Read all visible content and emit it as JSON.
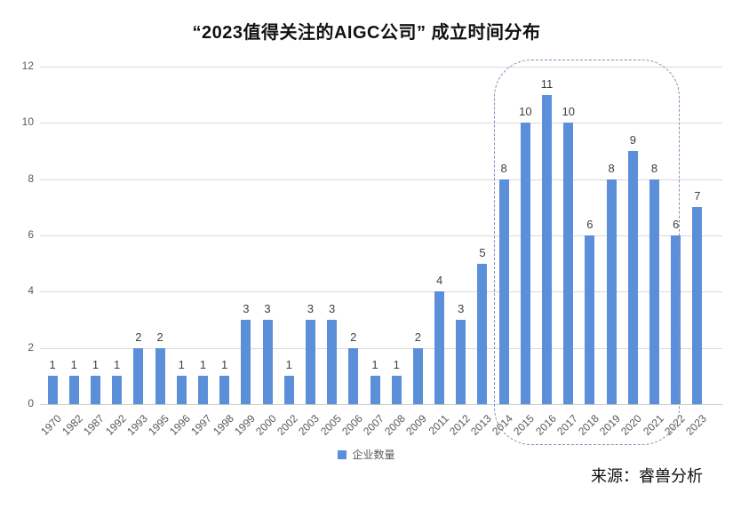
{
  "title": "“2023值得关注的AIGC公司” 成立时间分布",
  "chart_data": {
    "type": "bar",
    "title": "“2023值得关注的AIGC公司” 成立时间分布",
    "categories": [
      "1970",
      "1982",
      "1987",
      "1992",
      "1993",
      "1995",
      "1996",
      "1997",
      "1998",
      "1999",
      "2000",
      "2002",
      "2003",
      "2005",
      "2006",
      "2007",
      "2008",
      "2009",
      "2011",
      "2012",
      "2013",
      "2014",
      "2015",
      "2016",
      "2017",
      "2018",
      "2019",
      "2020",
      "2021",
      "2022",
      "2023"
    ],
    "values": [
      1,
      1,
      1,
      1,
      2,
      2,
      1,
      1,
      1,
      3,
      3,
      1,
      3,
      3,
      2,
      1,
      1,
      2,
      4,
      3,
      5,
      8,
      10,
      11,
      10,
      6,
      8,
      9,
      8,
      6,
      7
    ],
    "series_name": "企业数量",
    "xlabel": "",
    "ylabel": "",
    "ylim": [
      0,
      12
    ],
    "yticks": [
      0,
      2,
      4,
      6,
      8,
      10,
      12
    ],
    "grid": true,
    "data_labels": true,
    "legend_position": "bottom",
    "bar_color": "#5b8fd9",
    "grid_color": "#d9d9d9",
    "highlight_range": {
      "from": "2014",
      "to": "2022",
      "style": "dashed rounded rectangle",
      "border_color": "#7a93b8"
    }
  },
  "legend": {
    "label": "企业数量",
    "swatch_color": "#5b8fd9"
  },
  "source": {
    "text": "来源：睿兽分析"
  }
}
